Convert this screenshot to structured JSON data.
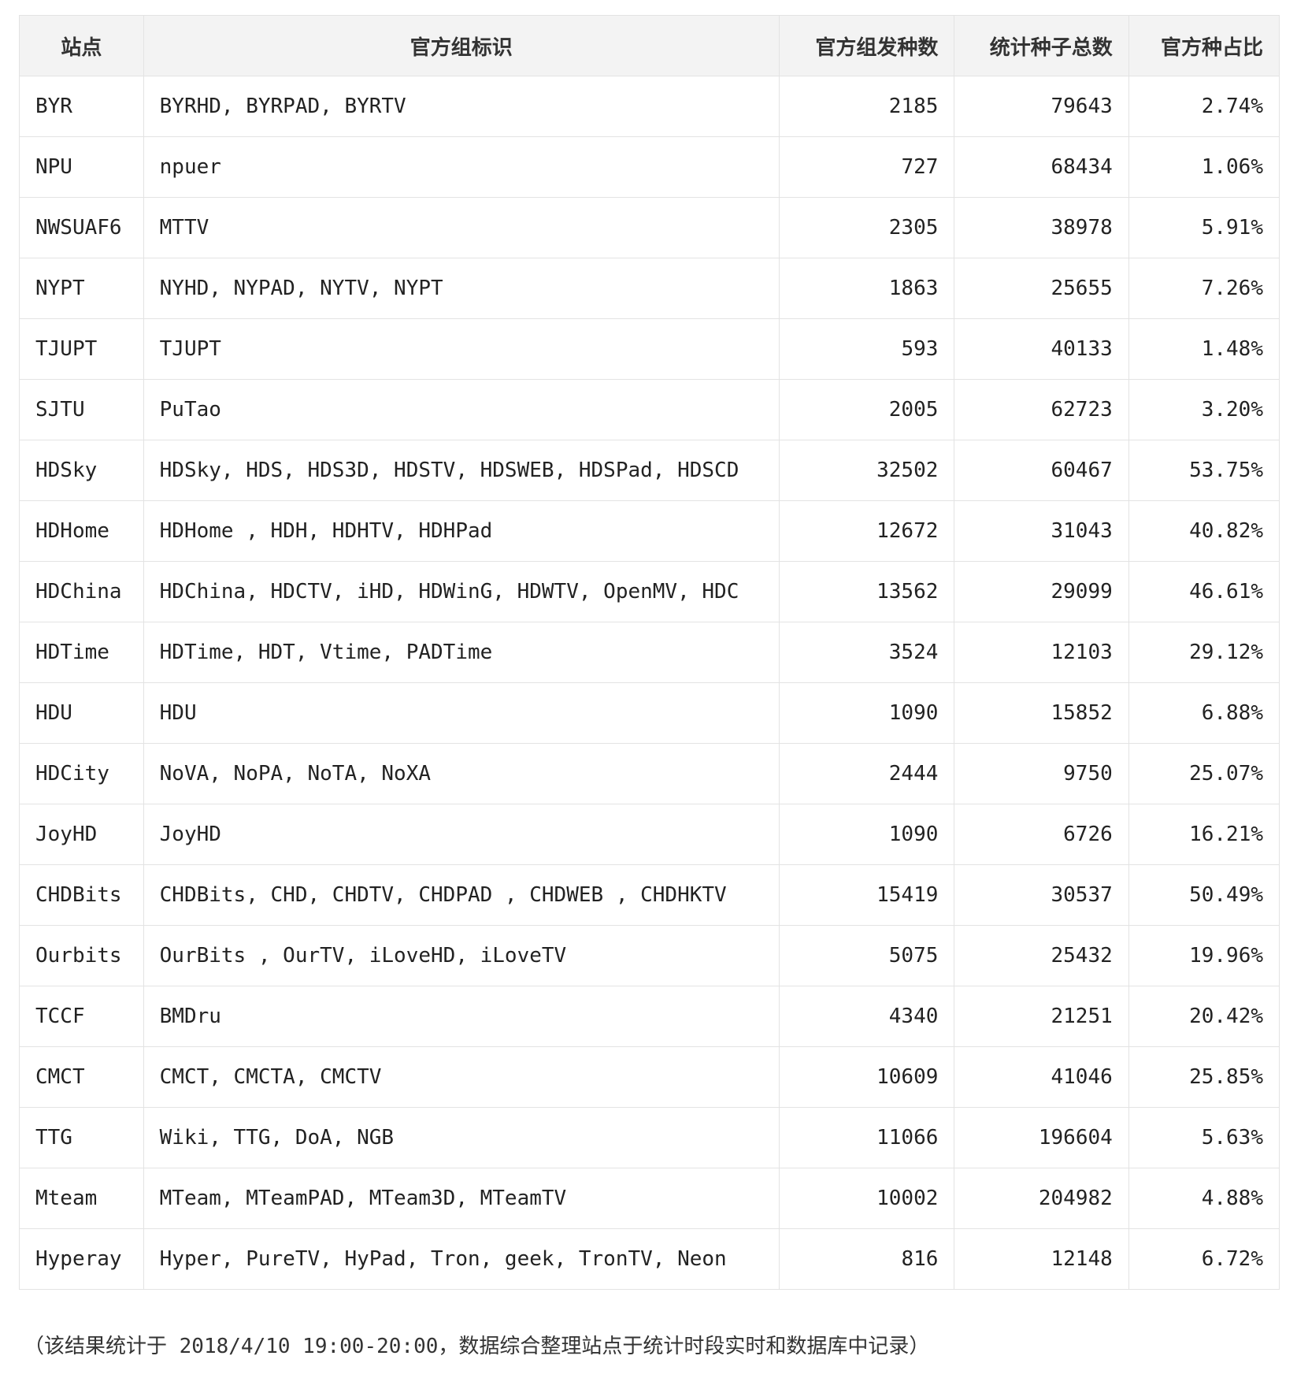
{
  "table": {
    "headers": [
      "站点",
      "官方组标识",
      "官方组发种数",
      "统计种子总数",
      "官方种占比"
    ],
    "rows": [
      [
        "BYR",
        "BYRHD, BYRPAD, BYRTV",
        "2185",
        "79643",
        "2.74%"
      ],
      [
        "NPU",
        "npuer",
        "727",
        "68434",
        "1.06%"
      ],
      [
        "NWSUAF6",
        "MTTV",
        "2305",
        "38978",
        "5.91%"
      ],
      [
        "NYPT",
        "NYHD, NYPAD, NYTV, NYPT",
        "1863",
        "25655",
        "7.26%"
      ],
      [
        "TJUPT",
        "TJUPT",
        "593",
        "40133",
        "1.48%"
      ],
      [
        "SJTU",
        "PuTao",
        "2005",
        "62723",
        "3.20%"
      ],
      [
        "HDSky",
        "HDSky, HDS, HDS3D, HDSTV, HDSWEB, HDSPad, HDSCD",
        "32502",
        "60467",
        "53.75%"
      ],
      [
        "HDHome",
        "HDHome , HDH, HDHTV, HDHPad",
        "12672",
        "31043",
        "40.82%"
      ],
      [
        "HDChina",
        "HDChina, HDCTV, iHD, HDWinG, HDWTV, OpenMV, HDC",
        "13562",
        "29099",
        "46.61%"
      ],
      [
        "HDTime",
        "HDTime, HDT, Vtime, PADTime",
        "3524",
        "12103",
        "29.12%"
      ],
      [
        "HDU",
        "HDU",
        "1090",
        "15852",
        "6.88%"
      ],
      [
        "HDCity",
        "NoVA, NoPA, NoTA, NoXA",
        "2444",
        "9750",
        "25.07%"
      ],
      [
        "JoyHD",
        "JoyHD",
        "1090",
        "6726",
        "16.21%"
      ],
      [
        "CHDBits",
        "CHDBits, CHD, CHDTV, CHDPAD , CHDWEB , CHDHKTV",
        "15419",
        "30537",
        "50.49%"
      ],
      [
        "Ourbits",
        "OurBits , OurTV, iLoveHD, iLoveTV",
        "5075",
        "25432",
        "19.96%"
      ],
      [
        "TCCF",
        "BMDru",
        "4340",
        "21251",
        "20.42%"
      ],
      [
        "CMCT",
        "CMCT, CMCTA, CMCTV",
        "10609",
        "41046",
        "25.85%"
      ],
      [
        "TTG",
        "Wiki, TTG, DoA, NGB",
        "11066",
        "196604",
        "5.63%"
      ],
      [
        "Mteam",
        "MTeam, MTeamPAD, MTeam3D, MTeamTV",
        "10002",
        "204982",
        "4.88%"
      ],
      [
        "Hyperay",
        "Hyper, PureTV, HyPad, Tron, geek, TronTV, Neon",
        "816",
        "12148",
        "6.72%"
      ]
    ]
  },
  "note": "（该结果统计于 2018/4/10 19:00-20:00，数据综合整理站点于统计时段实时和数据库中记录）"
}
